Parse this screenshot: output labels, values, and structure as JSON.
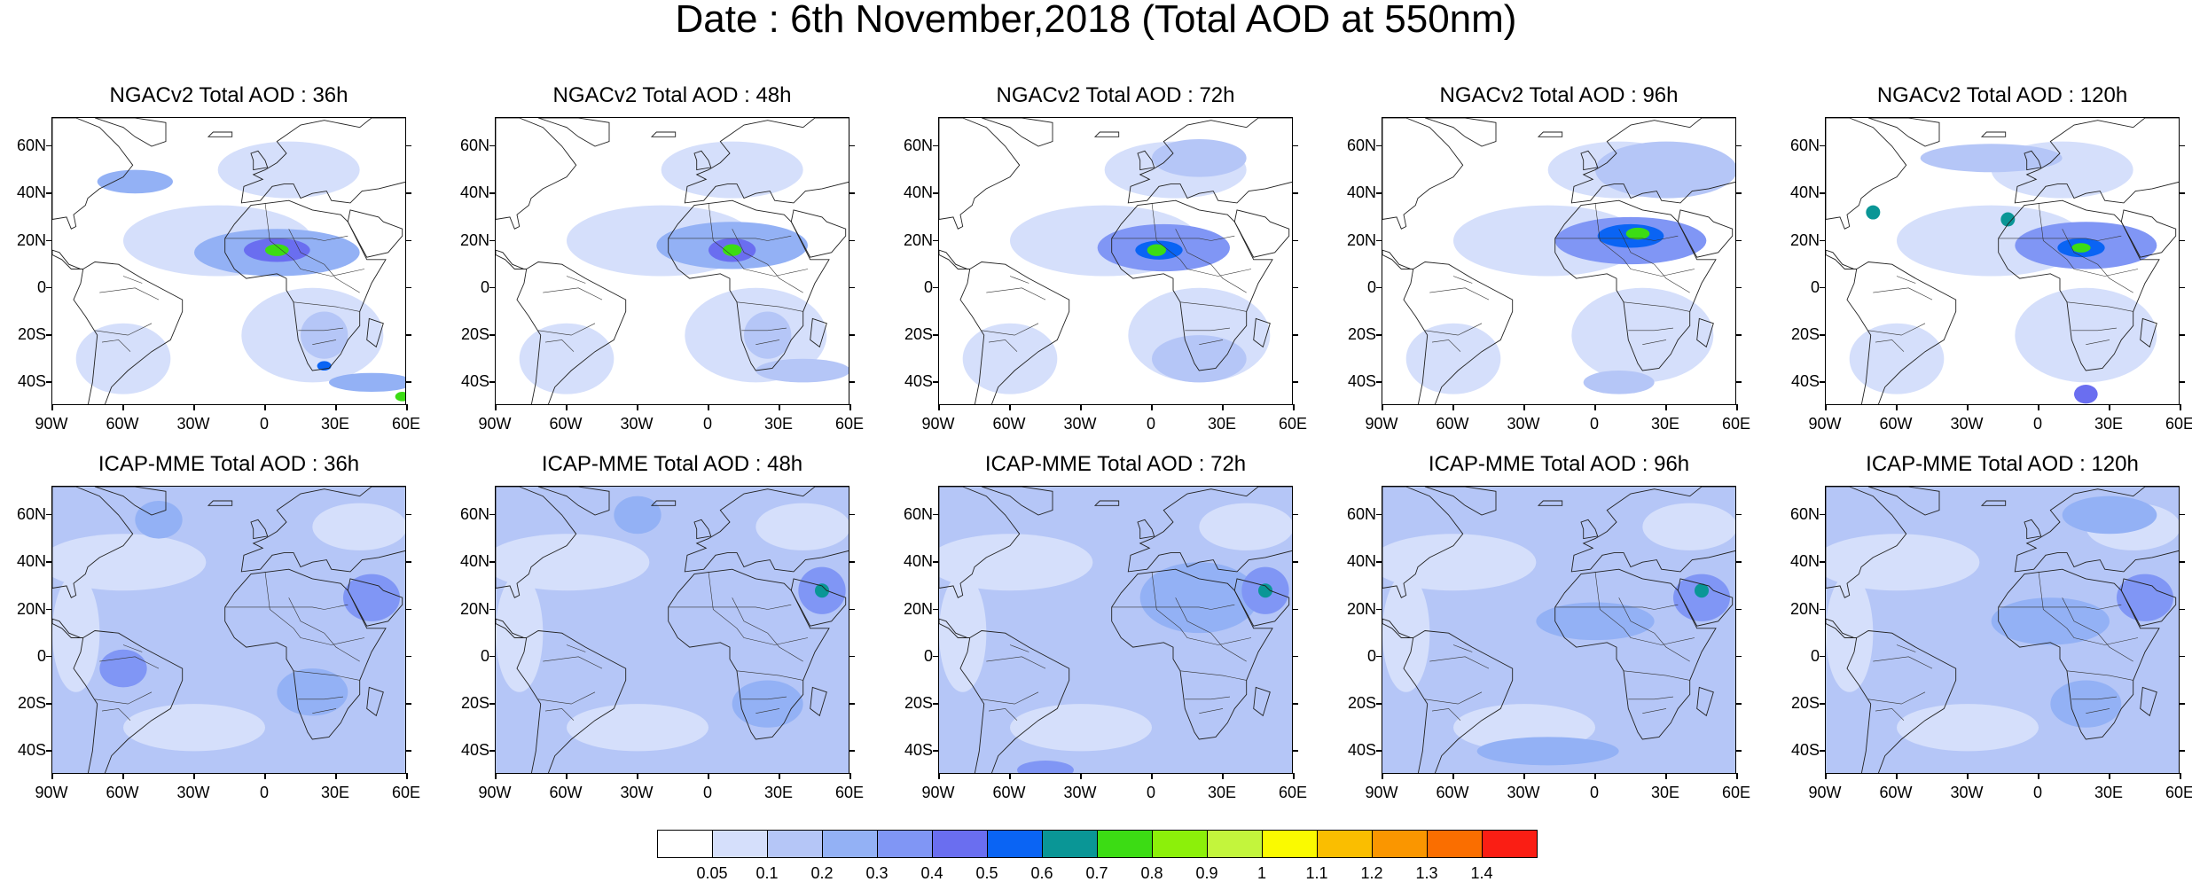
{
  "title": "Date : 6th November,2018 (Total AOD at 550nm)",
  "lat_labels": [
    "60N",
    "40N",
    "20N",
    "0",
    "20S",
    "40S"
  ],
  "lon_labels": [
    "90W",
    "60W",
    "30W",
    "0",
    "30E",
    "60E"
  ],
  "map_extent": {
    "lon": [
      -90,
      60
    ],
    "lat": [
      -50,
      72
    ]
  },
  "panels": [
    {
      "title": "NGACv2 Total AOD : 36h",
      "model": "NGACv2",
      "lead": "36h",
      "plumes": [
        {
          "lon": 5,
          "lat": 15,
          "rx": 35,
          "ry": 10,
          "level": 3
        },
        {
          "lon": 5,
          "lat": 16,
          "rx": 14,
          "ry": 5,
          "level": 5
        },
        {
          "lon": 5,
          "lat": 16,
          "rx": 5,
          "ry": 2.5,
          "level": 8
        },
        {
          "lon": -55,
          "lat": 45,
          "rx": 16,
          "ry": 5,
          "level": 3
        },
        {
          "lon": 45,
          "lat": -40,
          "rx": 18,
          "ry": 4,
          "level": 3
        },
        {
          "lon": 58,
          "lat": -46,
          "rx": 3,
          "ry": 2,
          "level": 8
        },
        {
          "lon": 25,
          "lat": -33,
          "rx": 3,
          "ry": 2,
          "level": 6
        },
        {
          "lon": 25,
          "lat": -20,
          "rx": 10,
          "ry": 10,
          "level": 2
        }
      ]
    },
    {
      "title": "NGACv2 Total AOD : 48h",
      "model": "NGACv2",
      "lead": "48h",
      "plumes": [
        {
          "lon": 10,
          "lat": 18,
          "rx": 32,
          "ry": 10,
          "level": 3
        },
        {
          "lon": 10,
          "lat": 16,
          "rx": 10,
          "ry": 5,
          "level": 5
        },
        {
          "lon": 10,
          "lat": 16,
          "rx": 4,
          "ry": 2.5,
          "level": 8
        },
        {
          "lon": 40,
          "lat": -35,
          "rx": 20,
          "ry": 5,
          "level": 2
        },
        {
          "lon": 25,
          "lat": -20,
          "rx": 10,
          "ry": 10,
          "level": 2
        }
      ]
    },
    {
      "title": "NGACv2 Total AOD : 72h",
      "model": "NGACv2",
      "lead": "72h",
      "plumes": [
        {
          "lon": 5,
          "lat": 17,
          "rx": 28,
          "ry": 10,
          "level": 4
        },
        {
          "lon": 3,
          "lat": 16,
          "rx": 10,
          "ry": 4,
          "level": 6
        },
        {
          "lon": 2,
          "lat": 16,
          "rx": 4,
          "ry": 2.5,
          "level": 8
        },
        {
          "lon": 20,
          "lat": -30,
          "rx": 20,
          "ry": 10,
          "level": 2
        },
        {
          "lon": 20,
          "lat": 55,
          "rx": 20,
          "ry": 8,
          "level": 2
        }
      ]
    },
    {
      "title": "NGACv2 Total AOD : 96h",
      "model": "NGACv2",
      "lead": "96h",
      "plumes": [
        {
          "lon": 15,
          "lat": 20,
          "rx": 32,
          "ry": 10,
          "level": 4
        },
        {
          "lon": 15,
          "lat": 22,
          "rx": 14,
          "ry": 5,
          "level": 6
        },
        {
          "lon": 18,
          "lat": 23,
          "rx": 5,
          "ry": 2.5,
          "level": 8
        },
        {
          "lon": 30,
          "lat": 50,
          "rx": 30,
          "ry": 12,
          "level": 2
        },
        {
          "lon": 10,
          "lat": -40,
          "rx": 15,
          "ry": 5,
          "level": 2
        }
      ]
    },
    {
      "title": "NGACv2 Total AOD : 120h",
      "model": "NGACv2",
      "lead": "120h",
      "plumes": [
        {
          "lon": 20,
          "lat": 18,
          "rx": 30,
          "ry": 10,
          "level": 4
        },
        {
          "lon": 18,
          "lat": 17,
          "rx": 10,
          "ry": 4,
          "level": 6
        },
        {
          "lon": 18,
          "lat": 17,
          "rx": 4,
          "ry": 2,
          "level": 8
        },
        {
          "lon": -70,
          "lat": 32,
          "rx": 3,
          "ry": 3,
          "level": 7
        },
        {
          "lon": -13,
          "lat": 29,
          "rx": 3,
          "ry": 3,
          "level": 7
        },
        {
          "lon": 20,
          "lat": -45,
          "rx": 5,
          "ry": 4,
          "level": 5
        },
        {
          "lon": -20,
          "lat": 55,
          "rx": 30,
          "ry": 6,
          "level": 2
        }
      ]
    },
    {
      "title": "ICAP-MME Total AOD : 36h",
      "model": "ICAP-MME",
      "lead": "36h",
      "plumes": [
        {
          "lon": 45,
          "lat": 25,
          "rx": 12,
          "ry": 10,
          "level": 4
        },
        {
          "lon": -60,
          "lat": -5,
          "rx": 10,
          "ry": 8,
          "level": 4
        },
        {
          "lon": 20,
          "lat": -15,
          "rx": 15,
          "ry": 10,
          "level": 3
        },
        {
          "lon": -45,
          "lat": 58,
          "rx": 10,
          "ry": 8,
          "level": 3
        }
      ]
    },
    {
      "title": "ICAP-MME Total AOD : 48h",
      "model": "ICAP-MME",
      "lead": "48h",
      "plumes": [
        {
          "lon": 48,
          "lat": 28,
          "rx": 10,
          "ry": 10,
          "level": 4
        },
        {
          "lon": 48,
          "lat": 28,
          "rx": 3,
          "ry": 3,
          "level": 7
        },
        {
          "lon": 25,
          "lat": -20,
          "rx": 15,
          "ry": 10,
          "level": 3
        },
        {
          "lon": -30,
          "lat": 60,
          "rx": 10,
          "ry": 8,
          "level": 3
        }
      ]
    },
    {
      "title": "ICAP-MME Total AOD : 72h",
      "model": "ICAP-MME",
      "lead": "72h",
      "plumes": [
        {
          "lon": 48,
          "lat": 28,
          "rx": 10,
          "ry": 10,
          "level": 4
        },
        {
          "lon": 48,
          "lat": 28,
          "rx": 3,
          "ry": 3,
          "level": 7
        },
        {
          "lon": 20,
          "lat": 25,
          "rx": 25,
          "ry": 15,
          "level": 3
        },
        {
          "lon": -45,
          "lat": -48,
          "rx": 12,
          "ry": 4,
          "level": 4
        }
      ]
    },
    {
      "title": "ICAP-MME Total AOD : 96h",
      "model": "ICAP-MME",
      "lead": "96h",
      "plumes": [
        {
          "lon": 45,
          "lat": 25,
          "rx": 12,
          "ry": 10,
          "level": 4
        },
        {
          "lon": 45,
          "lat": 28,
          "rx": 3,
          "ry": 3,
          "level": 7
        },
        {
          "lon": 0,
          "lat": 15,
          "rx": 25,
          "ry": 8,
          "level": 3
        },
        {
          "lon": -20,
          "lat": -40,
          "rx": 30,
          "ry": 6,
          "level": 3
        }
      ]
    },
    {
      "title": "ICAP-MME Total AOD : 120h",
      "model": "ICAP-MME",
      "lead": "120h",
      "plumes": [
        {
          "lon": 45,
          "lat": 25,
          "rx": 12,
          "ry": 10,
          "level": 4
        },
        {
          "lon": 5,
          "lat": 15,
          "rx": 25,
          "ry": 10,
          "level": 3
        },
        {
          "lon": 20,
          "lat": -20,
          "rx": 15,
          "ry": 10,
          "level": 3
        },
        {
          "lon": 30,
          "lat": 60,
          "rx": 20,
          "ry": 8,
          "level": 3
        }
      ]
    }
  ],
  "colorbar": {
    "colors": [
      "#ffffff",
      "#d5dffb",
      "#b5c6f7",
      "#93b1f5",
      "#8096f5",
      "#6a6ef0",
      "#0a64f4",
      "#0a9696",
      "#3cdc14",
      "#8cf00a",
      "#c3f53c",
      "#fafa00",
      "#fabe00",
      "#fa9600",
      "#fa6e00",
      "#fa1e14"
    ],
    "labels": [
      "0.05",
      "0.1",
      "0.2",
      "0.3",
      "0.4",
      "0.5",
      "0.6",
      "0.7",
      "0.8",
      "0.9",
      "1",
      "1.1",
      "1.2",
      "1.3",
      "1.4"
    ]
  }
}
